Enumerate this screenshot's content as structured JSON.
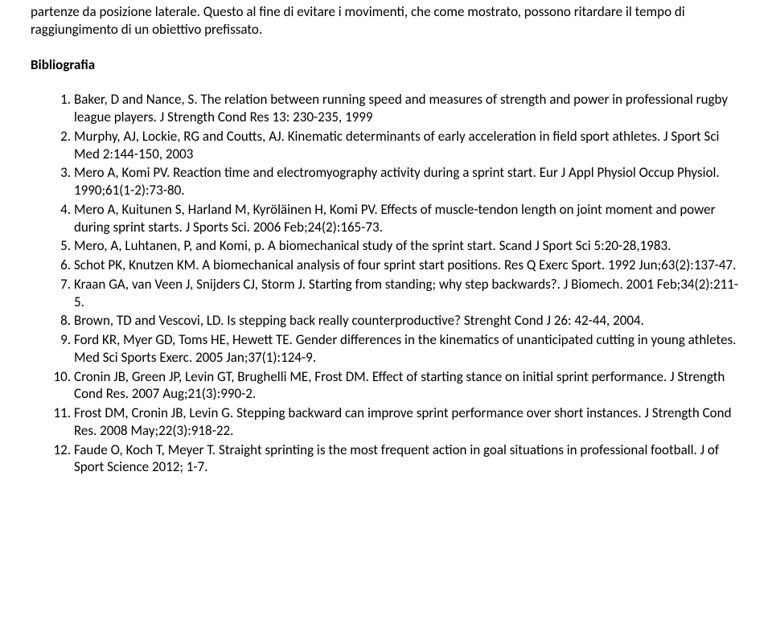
{
  "intro": "partenze da posizione laterale. Questo al fine di evitare i movimenti, che come mostrato, possono ritardare il tempo di raggiungimento di un obiettivo prefissato.",
  "bib_heading": "Bibliografia",
  "refs": [
    {
      "plain1": "Baker, D and Nance, S. The relation between running speed and measures of strength and power in professional rugby league players. J Strength Cond Res 13: 230-235, 1999"
    },
    {
      "plain1": "Murphy, AJ, Lockie, RG and Coutts, AJ. Kinematic determinants of early acceleration in field sport athletes. J Sport Sci Med 2:144-150, 2003"
    },
    {
      "link1": "Mero A",
      "plain1": ", ",
      "link2": "Komi PV",
      "plain2": ". Reaction time and electromyography activity during a sprint start. ",
      "link3": "Eur J Appl Physiol Occup Physiol.",
      "plain3": " 1990;61(1-2):73-80."
    },
    {
      "link1": "Mero A",
      "plain1": ", ",
      "link2": "Kuitunen S",
      "plain2": ", ",
      "link3": "Harland M",
      "plain3": ", ",
      "link4": "Kyröläinen H",
      "plain4": ", ",
      "link5": "Komi PV",
      "plain5": ". Effects of muscle-tendon length on joint moment and power during sprint starts. ",
      "link6": "J Sports Sci.",
      "plain6": " 2006 Feb;24(2):165-73."
    },
    {
      "plain1": "Mero, A, Luhtanen, P, and Komi, p. A biomechanical study of the sprint start. Scand J Sport Sci 5:20-28,1983."
    },
    {
      "link1": "Schot PK",
      "plain1": ", ",
      "link2": "Knutzen KM",
      "plain2": ".  A biomechanical analysis of four sprint start positions. ",
      "link3": "Res Q Exerc Sport.",
      "plain3": " 1992 Jun;63(2):137-47."
    },
    {
      "link1": "Kraan GA",
      "plain1": ", ",
      "link2": "van Veen J",
      "plain2": ", ",
      "link3": "Snijders CJ",
      "plain3": ", ",
      "link4": "Storm J",
      "plain4": ". Starting from standing; why step backwards?. ",
      "link5": "J Biomech.",
      "plain5": " 2001 Feb;34(2):211-5."
    },
    {
      "plain1": "Brown, TD and Vescovi, LD. Is stepping back really counterproductive? Strenght Cond J 26: 42-44, 2004."
    },
    {
      "link1": "Ford KR",
      "plain1": ", ",
      "link2": "Myer GD",
      "plain2": ", ",
      "link3": "Toms HE",
      "plain3": ", ",
      "link4": "Hewett TE",
      "plain4": ". Gender differences in the kinematics of unanticipated cutting in young athletes. ",
      "link5": "Med Sci Sports Exerc.",
      "plain5": " 2005 Jan;37(1):124-9."
    },
    {
      "link1": "Cronin JB",
      "plain1": ", ",
      "link2": "Green JP",
      "plain2": ", ",
      "link3": "Levin GT",
      "plain3": ", ",
      "link4": "Brughelli ME",
      "plain4": ", ",
      "link5": "Frost DM",
      "plain5": ". Effect of starting stance on initial sprint performance. ",
      "link6": "J Strength Cond Res.",
      "plain6": " 2007 Aug;21(3):990-2."
    },
    {
      "link1": "Frost DM",
      "plain1": ", ",
      "link2": "Cronin JB",
      "plain2": ", ",
      "link3": "Levin G",
      "plain3": ". Stepping backward can improve sprint performance over short instances. ",
      "link4": "J Strength Cond Res.",
      "plain4": " 2008 May;22(3):918-22."
    },
    {
      "link1": "Faude O",
      "plain1": ", ",
      "link2": "Koch T",
      "plain2": ", ",
      "link3": "Meyer T",
      "plain3": ". Straight sprinting is the most frequent action in goal situations in professional football. J of Sport Science 2012; 1-7."
    }
  ]
}
